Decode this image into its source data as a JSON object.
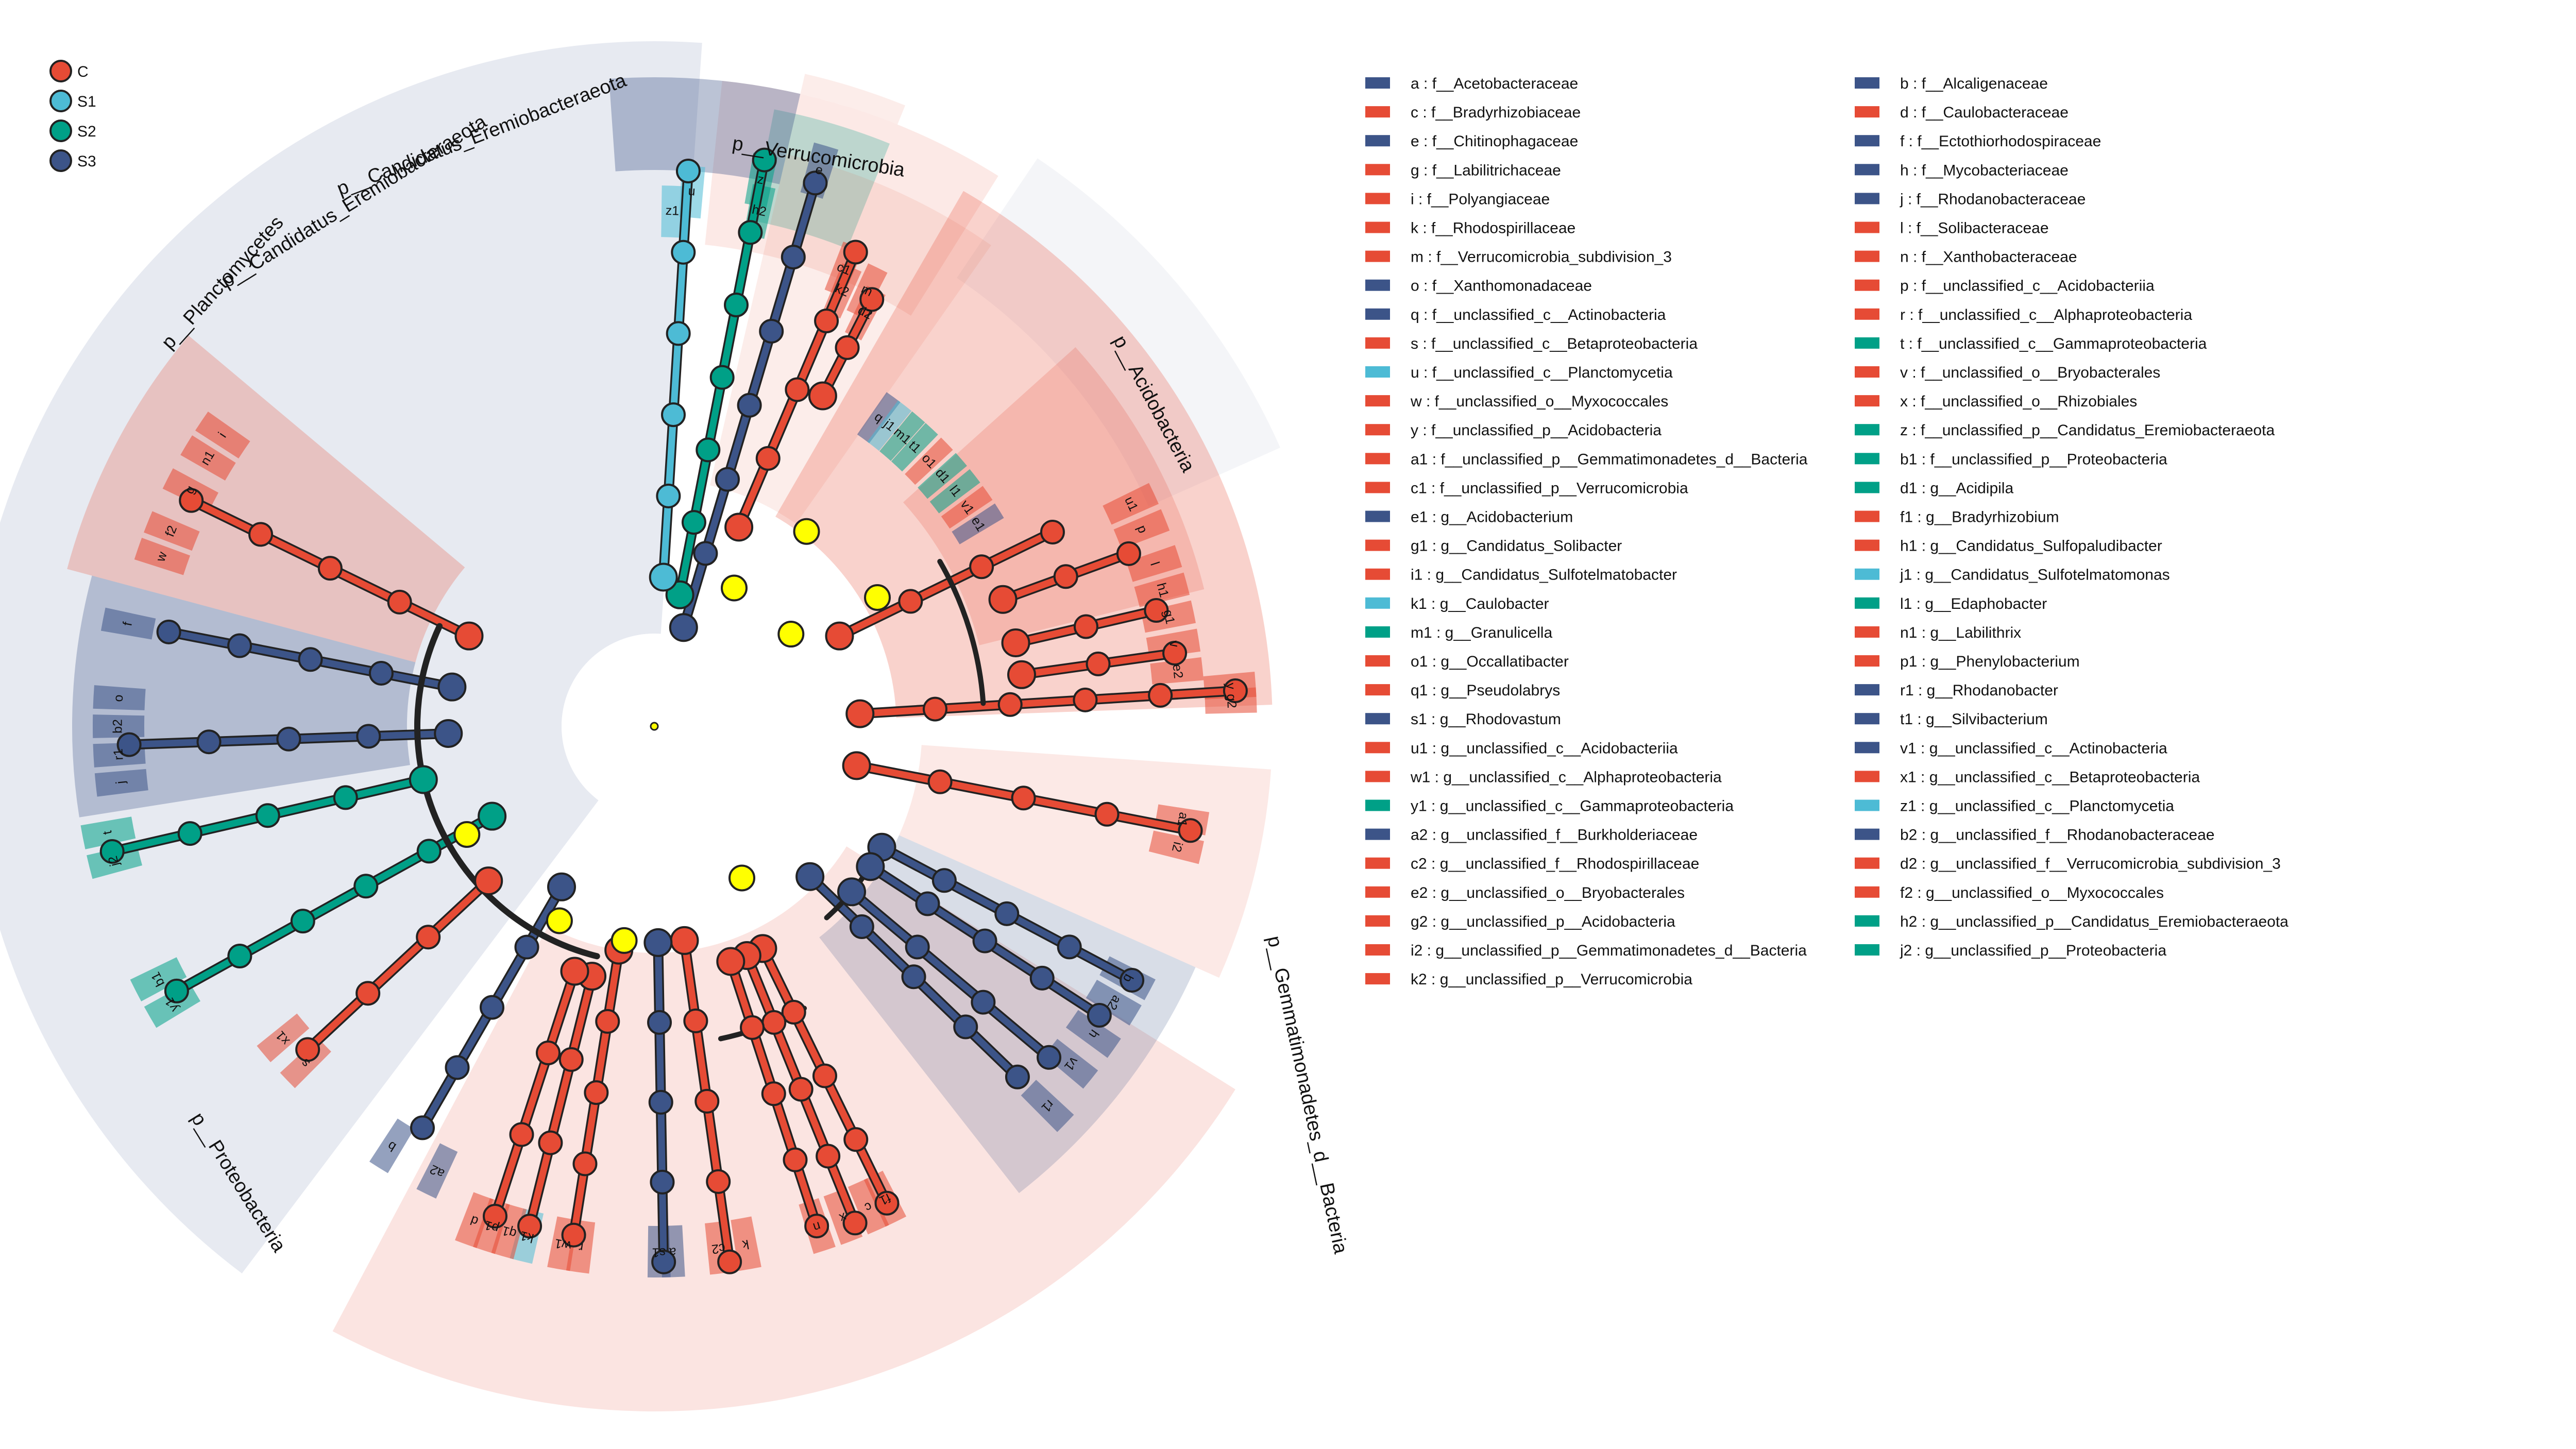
{
  "colors": {
    "C": "#E64B35",
    "S1": "#4DBBD5",
    "S2": "#00A087",
    "S3": "#3C5488",
    "shadeC": "#E64B35",
    "shadeS3": "#3C5488",
    "root": "#FFFF00"
  },
  "groups": [
    {
      "key": "C",
      "label": "C"
    },
    {
      "key": "S1",
      "label": "S1"
    },
    {
      "key": "S2",
      "label": "S2"
    },
    {
      "key": "S3",
      "label": "S3"
    }
  ],
  "clades": [
    {
      "label": "p__Verrucomicrobia"
    },
    {
      "label": "p__Acidobacteria"
    },
    {
      "label": "p__Gemmatimonadetes_d__Bacteria"
    },
    {
      "label": "p__Proteobacteria"
    },
    {
      "label": "p__Planctomycetes"
    },
    {
      "label": "p__Candidatus_Eremiobacteraeota"
    },
    {
      "label": "p__Candidatus_Eremiobacteraeota"
    }
  ],
  "legend_left": [
    {
      "k": "a",
      "name": "f__Acetobacteraceae",
      "g": "S3"
    },
    {
      "k": "c",
      "name": "f__Bradyrhizobiaceae",
      "g": "C"
    },
    {
      "k": "e",
      "name": "f__Chitinophagaceae",
      "g": "S3"
    },
    {
      "k": "g",
      "name": "f__Labilitrichaceae",
      "g": "C"
    },
    {
      "k": "i",
      "name": "f__Polyangiaceae",
      "g": "C"
    },
    {
      "k": "k",
      "name": "f__Rhodospirillaceae",
      "g": "C"
    },
    {
      "k": "m",
      "name": "f__Verrucomicrobia_subdivision_3",
      "g": "C"
    },
    {
      "k": "o",
      "name": "f__Xanthomonadaceae",
      "g": "S3"
    },
    {
      "k": "q",
      "name": "f__unclassified_c__Actinobacteria",
      "g": "S3"
    },
    {
      "k": "s",
      "name": "f__unclassified_c__Betaproteobacteria",
      "g": "C"
    },
    {
      "k": "u",
      "name": "f__unclassified_c__Planctomycetia",
      "g": "S1"
    },
    {
      "k": "w",
      "name": "f__unclassified_o__Myxococcales",
      "g": "C"
    },
    {
      "k": "y",
      "name": "f__unclassified_p__Acidobacteria",
      "g": "C"
    },
    {
      "k": "a1",
      "name": "f__unclassified_p__Gemmatimonadetes_d__Bacteria",
      "g": "C"
    },
    {
      "k": "c1",
      "name": "f__unclassified_p__Verrucomicrobia",
      "g": "C"
    },
    {
      "k": "e1",
      "name": "g__Acidobacterium",
      "g": "S3"
    },
    {
      "k": "g1",
      "name": "g__Candidatus_Solibacter",
      "g": "C"
    },
    {
      "k": "i1",
      "name": "g__Candidatus_Sulfotelmatobacter",
      "g": "C"
    },
    {
      "k": "k1",
      "name": "g__Caulobacter",
      "g": "S1"
    },
    {
      "k": "m1",
      "name": "g__Granulicella",
      "g": "S2"
    },
    {
      "k": "o1",
      "name": "g__Occallatibacter",
      "g": "C"
    },
    {
      "k": "q1",
      "name": "g__Pseudolabrys",
      "g": "C"
    },
    {
      "k": "s1",
      "name": "g__Rhodovastum",
      "g": "S3"
    },
    {
      "k": "u1",
      "name": "g__unclassified_c__Acidobacteriia",
      "g": "C"
    },
    {
      "k": "w1",
      "name": "g__unclassified_c__Alphaproteobacteria",
      "g": "C"
    },
    {
      "k": "y1",
      "name": "g__unclassified_c__Gammaproteobacteria",
      "g": "S2"
    },
    {
      "k": "a2",
      "name": "g__unclassified_f__Burkholderiaceae",
      "g": "S3"
    },
    {
      "k": "c2",
      "name": "g__unclassified_f__Rhodospirillaceae",
      "g": "C"
    },
    {
      "k": "e2",
      "name": "g__unclassified_o__Bryobacterales",
      "g": "C"
    },
    {
      "k": "g2",
      "name": "g__unclassified_p__Acidobacteria",
      "g": "C"
    },
    {
      "k": "i2",
      "name": "g__unclassified_p__Gemmatimonadetes_d__Bacteria",
      "g": "C"
    },
    {
      "k": "k2",
      "name": "g__unclassified_p__Verrucomicrobia",
      "g": "C"
    }
  ],
  "legend_right": [
    {
      "k": "b",
      "name": "f__Alcaligenaceae",
      "g": "S3"
    },
    {
      "k": "d",
      "name": "f__Caulobacteraceae",
      "g": "C"
    },
    {
      "k": "f",
      "name": "f__Ectothiorhodospiraceae",
      "g": "S3"
    },
    {
      "k": "h",
      "name": "f__Mycobacteriaceae",
      "g": "S3"
    },
    {
      "k": "j",
      "name": "f__Rhodanobacteraceae",
      "g": "S3"
    },
    {
      "k": "l",
      "name": "f__Solibacteraceae",
      "g": "C"
    },
    {
      "k": "n",
      "name": "f__Xanthobacteraceae",
      "g": "C"
    },
    {
      "k": "p",
      "name": "f__unclassified_c__Acidobacteriia",
      "g": "C"
    },
    {
      "k": "r",
      "name": "f__unclassified_c__Alphaproteobacteria",
      "g": "C"
    },
    {
      "k": "t",
      "name": "f__unclassified_c__Gammaproteobacteria",
      "g": "S2"
    },
    {
      "k": "v",
      "name": "f__unclassified_o__Bryobacterales",
      "g": "C"
    },
    {
      "k": "x",
      "name": "f__unclassified_o__Rhizobiales",
      "g": "C"
    },
    {
      "k": "z",
      "name": "f__unclassified_p__Candidatus_Eremiobacteraeota",
      "g": "S2"
    },
    {
      "k": "b1",
      "name": "f__unclassified_p__Proteobacteria",
      "g": "S2"
    },
    {
      "k": "d1",
      "name": "g__Acidipila",
      "g": "S2"
    },
    {
      "k": "f1",
      "name": "g__Bradyrhizobium",
      "g": "C"
    },
    {
      "k": "h1",
      "name": "g__Candidatus_Sulfopaludibacter",
      "g": "C"
    },
    {
      "k": "j1",
      "name": "g__Candidatus_Sulfotelmatomonas",
      "g": "S1"
    },
    {
      "k": "l1",
      "name": "g__Edaphobacter",
      "g": "S2"
    },
    {
      "k": "n1",
      "name": "g__Labilithrix",
      "g": "C"
    },
    {
      "k": "p1",
      "name": "g__Phenylobacterium",
      "g": "C"
    },
    {
      "k": "r1",
      "name": "g__Rhodanobacter",
      "g": "S3"
    },
    {
      "k": "t1",
      "name": "g__Silvibacterium",
      "g": "S3"
    },
    {
      "k": "v1",
      "name": "g__unclassified_c__Actinobacteria",
      "g": "S3"
    },
    {
      "k": "x1",
      "name": "g__unclassified_c__Betaproteobacteria",
      "g": "C"
    },
    {
      "k": "z1",
      "name": "g__unclassified_c__Planctomycetia",
      "g": "S1"
    },
    {
      "k": "b2",
      "name": "g__unclassified_f__Rhodanobacteraceae",
      "g": "S3"
    },
    {
      "k": "d2",
      "name": "g__unclassified_f__Verrucomicrobia_subdivision_3",
      "g": "C"
    },
    {
      "k": "f2",
      "name": "g__unclassified_o__Myxococcales",
      "g": "C"
    },
    {
      "k": "h2",
      "name": "g__unclassified_p__Candidatus_Eremiobacteraeota",
      "g": "S2"
    },
    {
      "k": "j2",
      "name": "g__unclassified_p__Proteobacteria",
      "g": "S2"
    }
  ]
}
